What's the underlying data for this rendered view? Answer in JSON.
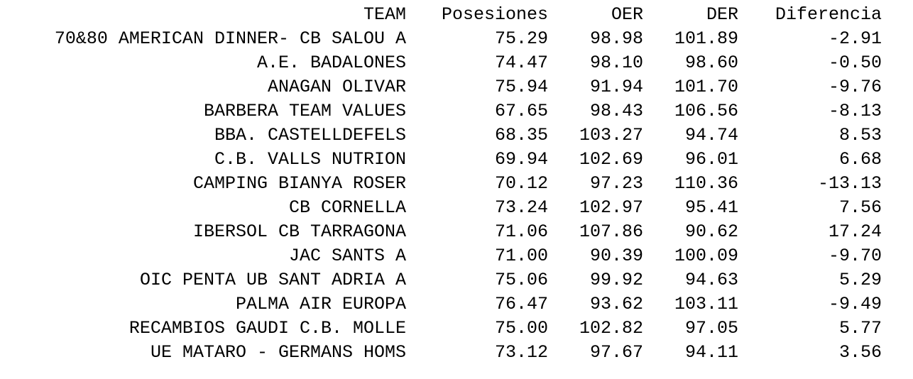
{
  "table": {
    "headers": [
      "TEAM",
      "Posesiones",
      "OER",
      "DER",
      "Diferencia"
    ],
    "rows": [
      [
        "70&80 AMERICAN DINNER- CB SALOU A",
        "75.29",
        "98.98",
        "101.89",
        "-2.91"
      ],
      [
        "A.E. BADALONES",
        "74.47",
        "98.10",
        "98.60",
        "-0.50"
      ],
      [
        "ANAGAN OLIVAR",
        "75.94",
        "91.94",
        "101.70",
        "-9.76"
      ],
      [
        "BARBERA TEAM VALUES",
        "67.65",
        "98.43",
        "106.56",
        "-8.13"
      ],
      [
        "BBA. CASTELLDEFELS",
        "68.35",
        "103.27",
        "94.74",
        "8.53"
      ],
      [
        "C.B. VALLS NUTRION",
        "69.94",
        "102.69",
        "96.01",
        "6.68"
      ],
      [
        "CAMPING BIANYA ROSER",
        "70.12",
        "97.23",
        "110.36",
        "-13.13"
      ],
      [
        "CB CORNELLA",
        "73.24",
        "102.97",
        "95.41",
        "7.56"
      ],
      [
        "IBERSOL CB TARRAGONA",
        "71.06",
        "107.86",
        "90.62",
        "17.24"
      ],
      [
        "JAC SANTS A",
        "71.00",
        "90.39",
        "100.09",
        "-9.70"
      ],
      [
        "OIC PENTA UB SANT ADRIA A",
        "75.06",
        "99.92",
        "94.63",
        "5.29"
      ],
      [
        "PALMA AIR EUROPA",
        "76.47",
        "93.62",
        "103.11",
        "-9.49"
      ],
      [
        "RECAMBIOS GAUDI C.B. MOLLE",
        "75.00",
        "102.82",
        "97.05",
        "5.77"
      ],
      [
        "UE MATARO - GERMANS HOMS",
        "73.12",
        "97.67",
        "94.11",
        "3.56"
      ]
    ]
  }
}
